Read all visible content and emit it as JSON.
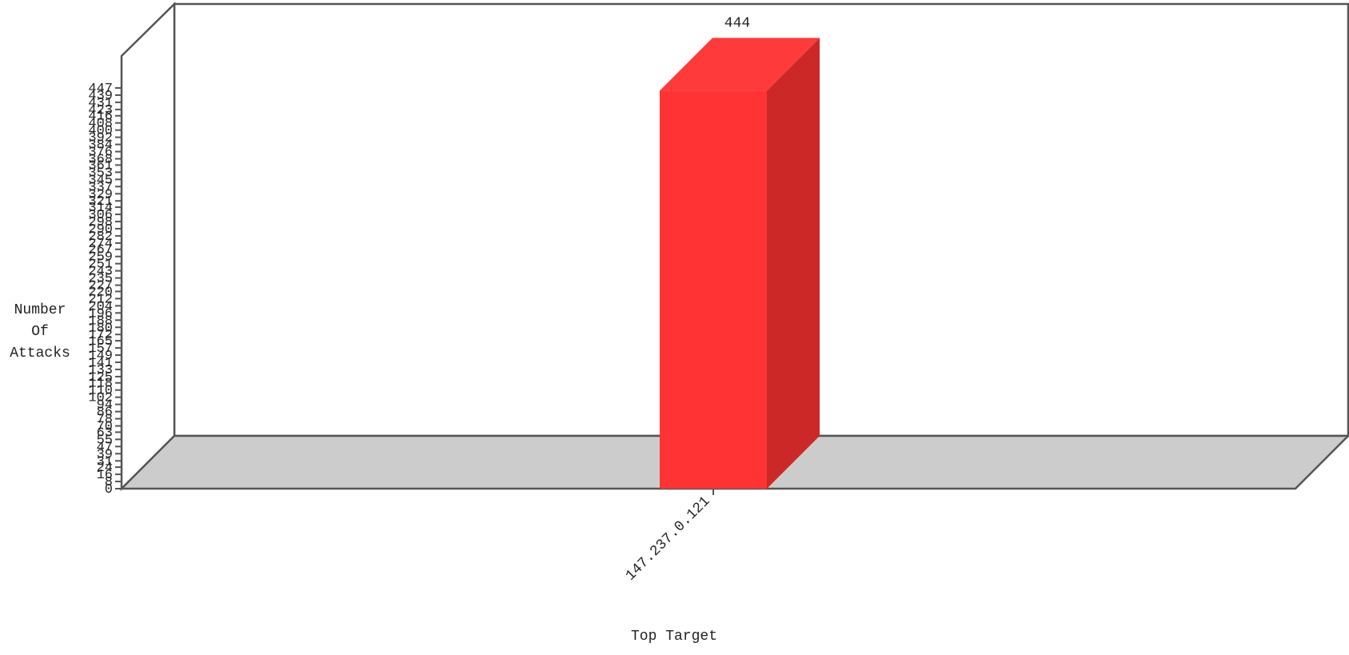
{
  "chart_data": {
    "type": "bar",
    "categories": [
      "147.237.0.121"
    ],
    "values": [
      444
    ],
    "data_labels": [
      "444"
    ],
    "xlabel": "Top Target",
    "ylabel_lines": [
      "Number",
      "Of",
      "Attacks"
    ],
    "ylim": [
      0,
      447
    ],
    "yticks": [
      0,
      8,
      16,
      24,
      31,
      39,
      47,
      55,
      63,
      70,
      78,
      86,
      94,
      102,
      110,
      118,
      125,
      133,
      141,
      149,
      157,
      165,
      172,
      180,
      188,
      196,
      204,
      212,
      220,
      227,
      235,
      243,
      251,
      259,
      267,
      274,
      282,
      290,
      298,
      306,
      314,
      321,
      329,
      337,
      345,
      353,
      361,
      368,
      376,
      384,
      392,
      400,
      408,
      416,
      423,
      431,
      439,
      447
    ],
    "style": "3d",
    "colors": {
      "bar_front": "#ff3333",
      "bar_top": "#ff3a3a",
      "bar_side": "#cc2828",
      "floor": "#cccccc",
      "frame": "#555555",
      "text": "#222222"
    }
  }
}
